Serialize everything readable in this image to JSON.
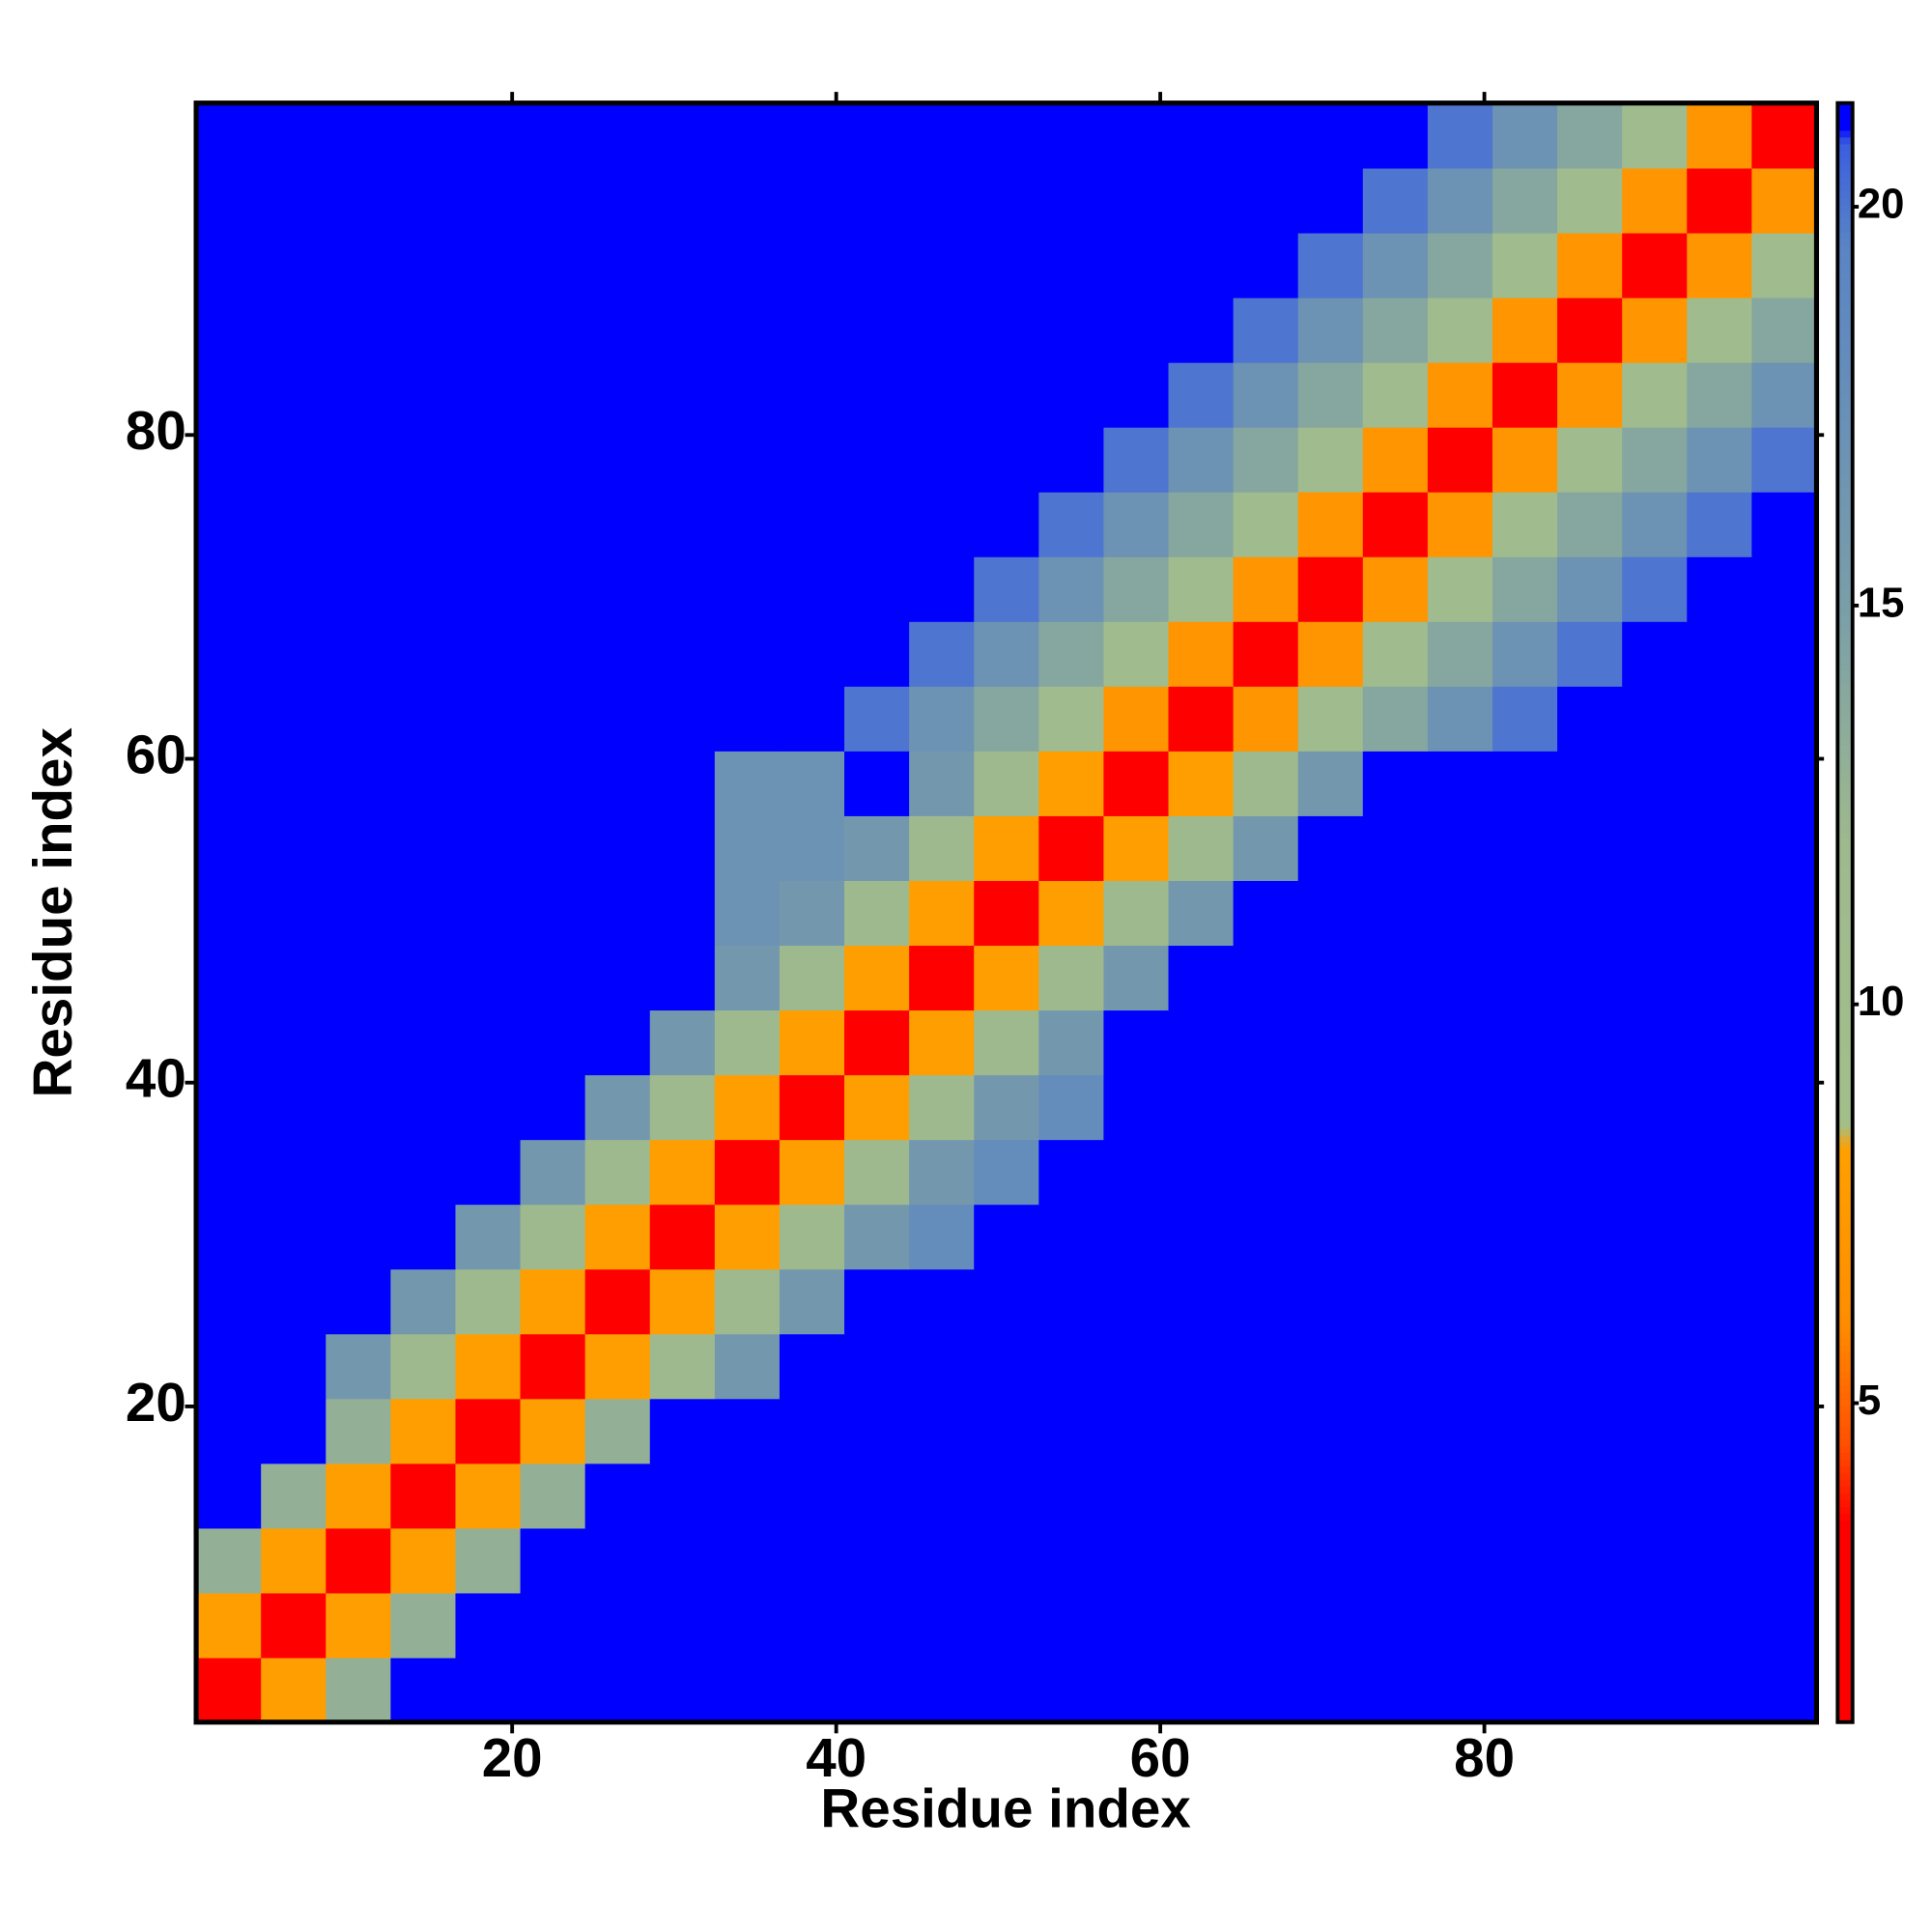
{
  "chart_data": {
    "type": "heatmap",
    "x_label": "Residue index",
    "y_label": "Residue index",
    "x": [
      2.5,
      6.5,
      10.5,
      14.5,
      18.5,
      22.5,
      26.5,
      30.5,
      34.5,
      38.5,
      42.5,
      46.5,
      50.5,
      54.5,
      58.5,
      62.5,
      66.5,
      70.5,
      74.5,
      78.5,
      82.5,
      86.5,
      90.5,
      94.5,
      98.5
    ],
    "y": [
      2.5,
      6.5,
      10.5,
      14.5,
      18.5,
      22.5,
      26.5,
      30.5,
      34.5,
      38.5,
      42.5,
      46.5,
      50.5,
      54.5,
      58.5,
      62.5,
      66.5,
      70.5,
      74.5,
      78.5,
      82.5,
      86.5,
      90.5,
      94.5,
      98.5
    ],
    "z": [
      [
        3,
        8,
        13,
        21,
        21,
        21,
        21,
        21,
        21,
        21,
        21,
        21,
        21,
        21,
        21,
        21,
        21,
        21,
        21,
        21,
        21,
        21,
        21,
        21,
        21
      ],
      [
        8,
        3,
        8,
        13,
        21,
        21,
        21,
        21,
        21,
        21,
        21,
        21,
        21,
        21,
        21,
        21,
        21,
        21,
        21,
        21,
        21,
        21,
        21,
        21,
        21
      ],
      [
        13,
        8,
        3,
        8,
        13,
        21,
        21,
        21,
        21,
        21,
        21,
        21,
        21,
        21,
        21,
        21,
        21,
        21,
        21,
        21,
        21,
        21,
        21,
        21,
        21
      ],
      [
        21,
        13,
        8,
        3,
        8,
        13,
        21,
        21,
        21,
        21,
        21,
        21,
        21,
        21,
        21,
        21,
        21,
        21,
        21,
        21,
        21,
        21,
        21,
        21,
        21
      ],
      [
        21,
        21,
        13,
        8,
        3,
        8,
        13,
        21,
        21,
        21,
        21,
        21,
        21,
        21,
        21,
        21,
        21,
        21,
        21,
        21,
        21,
        21,
        21,
        21,
        21
      ],
      [
        21,
        21,
        16,
        12,
        8,
        3,
        8,
        12,
        16,
        21,
        21,
        21,
        21,
        21,
        21,
        21,
        21,
        21,
        21,
        21,
        21,
        21,
        21,
        21,
        21
      ],
      [
        21,
        21,
        21,
        16,
        12,
        8,
        3,
        8,
        12,
        16,
        21,
        21,
        21,
        21,
        21,
        21,
        21,
        21,
        21,
        21,
        21,
        21,
        21,
        21,
        21
      ],
      [
        21,
        21,
        21,
        21,
        16,
        12,
        8,
        3,
        8,
        12,
        16,
        18,
        21,
        21,
        21,
        21,
        21,
        21,
        21,
        21,
        21,
        21,
        21,
        21,
        21
      ],
      [
        21,
        21,
        21,
        21,
        21,
        16,
        12,
        8,
        3,
        8,
        12,
        16,
        18,
        21,
        21,
        21,
        21,
        21,
        21,
        21,
        21,
        21,
        21,
        21,
        21
      ],
      [
        21,
        21,
        21,
        21,
        21,
        21,
        16,
        12,
        8,
        3,
        8,
        12,
        16,
        18,
        21,
        21,
        21,
        21,
        21,
        21,
        21,
        21,
        21,
        21,
        21
      ],
      [
        21,
        21,
        21,
        21,
        21,
        21,
        21,
        16,
        12,
        8,
        3,
        8,
        12,
        16,
        21,
        21,
        21,
        21,
        21,
        21,
        21,
        21,
        21,
        21,
        21
      ],
      [
        21,
        21,
        21,
        21,
        21,
        21,
        21,
        21,
        16,
        12,
        8,
        3,
        8,
        12,
        16,
        21,
        21,
        21,
        21,
        21,
        21,
        21,
        21,
        21,
        21
      ],
      [
        21,
        21,
        21,
        21,
        21,
        21,
        21,
        21,
        17,
        16,
        12,
        8,
        3,
        8,
        12,
        16,
        21,
        21,
        21,
        21,
        21,
        21,
        21,
        21,
        21
      ],
      [
        21,
        21,
        21,
        21,
        21,
        21,
        21,
        21,
        17,
        17,
        16,
        12,
        8,
        3,
        8,
        12,
        16,
        21,
        21,
        21,
        21,
        21,
        21,
        21,
        21
      ],
      [
        21,
        21,
        21,
        21,
        21,
        21,
        21,
        21,
        17,
        17,
        21,
        16,
        12,
        8,
        3,
        8,
        12,
        16,
        21,
        21,
        21,
        21,
        21,
        21,
        21
      ],
      [
        21,
        21,
        21,
        21,
        21,
        21,
        21,
        21,
        21,
        21,
        20,
        17,
        14,
        11,
        7,
        3,
        7,
        11,
        14,
        17,
        20,
        21,
        21,
        21,
        21
      ],
      [
        21,
        21,
        21,
        21,
        21,
        21,
        21,
        21,
        21,
        21,
        21,
        20,
        17,
        14,
        11,
        7,
        3,
        7,
        11,
        14,
        17,
        20,
        21,
        21,
        21
      ],
      [
        21,
        21,
        21,
        21,
        21,
        21,
        21,
        21,
        21,
        21,
        21,
        21,
        20,
        17,
        14,
        11,
        7,
        3,
        7,
        11,
        14,
        17,
        20,
        21,
        21
      ],
      [
        21,
        21,
        21,
        21,
        21,
        21,
        21,
        21,
        21,
        21,
        21,
        21,
        21,
        20,
        17,
        14,
        11,
        7,
        3,
        7,
        11,
        14,
        17,
        20,
        21
      ],
      [
        21,
        21,
        21,
        21,
        21,
        21,
        21,
        21,
        21,
        21,
        21,
        21,
        21,
        21,
        20,
        17,
        14,
        11,
        7,
        3,
        7,
        11,
        14,
        17,
        20
      ],
      [
        21,
        21,
        21,
        21,
        21,
        21,
        21,
        21,
        21,
        21,
        21,
        21,
        21,
        21,
        21,
        20,
        17,
        14,
        11,
        7,
        3,
        7,
        11,
        14,
        17
      ],
      [
        21,
        21,
        21,
        21,
        21,
        21,
        21,
        21,
        21,
        21,
        21,
        21,
        21,
        21,
        21,
        21,
        20,
        17,
        14,
        11,
        7,
        3,
        7,
        11,
        14
      ],
      [
        21,
        21,
        21,
        21,
        21,
        21,
        21,
        21,
        21,
        21,
        21,
        21,
        21,
        21,
        21,
        21,
        21,
        20,
        17,
        14,
        11,
        7,
        3,
        7,
        11
      ],
      [
        21,
        21,
        21,
        21,
        21,
        21,
        21,
        21,
        21,
        21,
        21,
        21,
        21,
        21,
        21,
        21,
        21,
        21,
        20,
        17,
        14,
        11,
        7,
        3,
        7
      ],
      [
        21,
        21,
        21,
        21,
        21,
        21,
        21,
        21,
        21,
        21,
        21,
        21,
        21,
        21,
        21,
        21,
        21,
        21,
        21,
        20,
        17,
        14,
        11,
        7,
        3
      ]
    ],
    "xlim": [
      0.5,
      100.5
    ],
    "ylim": [
      0.5,
      100.5
    ],
    "xticks": [
      20,
      40,
      60,
      80
    ],
    "yticks": [
      20,
      40,
      60,
      80
    ],
    "zlim": [
      1,
      21.3
    ],
    "zticks": [
      5,
      10,
      15,
      20
    ],
    "colormap": [
      [
        1,
        "#ff0000"
      ],
      [
        3.5,
        "#ff0000"
      ],
      [
        4.5,
        "#ff5000"
      ],
      [
        6,
        "#ff8c00"
      ],
      [
        8.2,
        "#ffa000"
      ],
      [
        8.5,
        "#a2bf8a"
      ],
      [
        12,
        "#9fb98e"
      ],
      [
        15,
        "#7a9ea8"
      ],
      [
        19.5,
        "#5a84c4"
      ],
      [
        20.8,
        "#3a5ee0"
      ],
      [
        21,
        "#0000ff"
      ],
      [
        21.3,
        "#0000ff"
      ]
    ]
  }
}
